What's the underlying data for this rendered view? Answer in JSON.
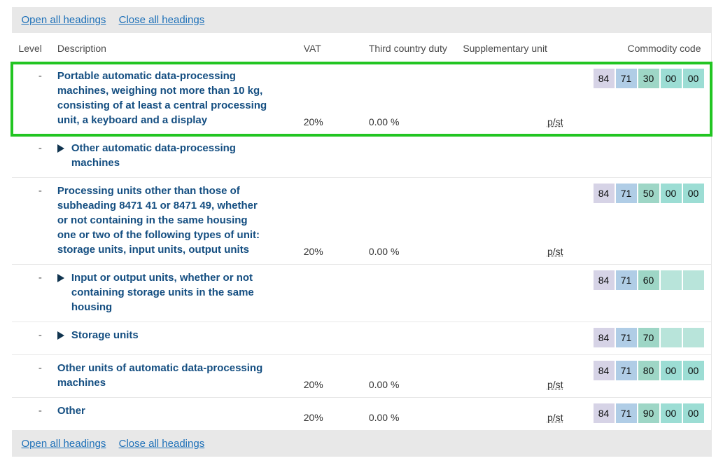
{
  "controls": {
    "open_all": "Open all headings",
    "close_all": "Close all headings"
  },
  "headers": {
    "level": "Level",
    "description": "Description",
    "vat": "VAT",
    "duty": "Third country duty",
    "supp": "Supplementary unit",
    "code": "Commodity code"
  },
  "code_colors": {
    "segA": "#d6d3e6",
    "segB": "#b0cde6",
    "segC": "#9ed6c6",
    "segD": "#9cddd4",
    "segE": "#9cddd4",
    "blank": "#b8e4da"
  },
  "link_color": "#144e81",
  "pst_label": "p/st",
  "rows": [
    {
      "level": "-",
      "has_arrow": false,
      "indent": 0,
      "description": "Portable automatic data-processing machines, weighing not more than 10 kg, consisting of at least a central processing unit, a keyboard and a display",
      "vat": "20%",
      "duty": "0.00 %",
      "supp": "p/st",
      "code": [
        "84",
        "71",
        "30",
        "00",
        "00"
      ],
      "highlighted": true
    },
    {
      "level": "-",
      "has_arrow": true,
      "indent": 1,
      "description": "Other automatic data-processing machines",
      "vat": "",
      "duty": "",
      "supp": "",
      "code": null
    },
    {
      "level": "-",
      "has_arrow": false,
      "indent": 0,
      "description": "Processing units other than those of subheading 8471 41 or 8471 49, whether or not containing in the same housing one or two of the following types of unit: storage units, input units, output units",
      "vat": "20%",
      "duty": "0.00 %",
      "supp": "p/st",
      "code": [
        "84",
        "71",
        "50",
        "00",
        "00"
      ]
    },
    {
      "level": "-",
      "has_arrow": true,
      "indent": 1,
      "description": "Input or output units, whether or not containing storage units in the same housing",
      "vat": "",
      "duty": "",
      "supp": "",
      "code": [
        "84",
        "71",
        "60",
        "",
        ""
      ]
    },
    {
      "level": "-",
      "has_arrow": true,
      "indent": 1,
      "description": "Storage units",
      "vat": "",
      "duty": "",
      "supp": "",
      "code": [
        "84",
        "71",
        "70",
        "",
        ""
      ]
    },
    {
      "level": "-",
      "has_arrow": false,
      "indent": 0,
      "description": "Other units of automatic data-processing machines",
      "vat": "20%",
      "duty": "0.00 %",
      "supp": "p/st",
      "code": [
        "84",
        "71",
        "80",
        "00",
        "00"
      ]
    },
    {
      "level": "-",
      "has_arrow": false,
      "indent": 0,
      "description": "Other",
      "vat": "20%",
      "duty": "0.00 %",
      "supp": "p/st",
      "code": [
        "84",
        "71",
        "90",
        "00",
        "00"
      ]
    }
  ]
}
